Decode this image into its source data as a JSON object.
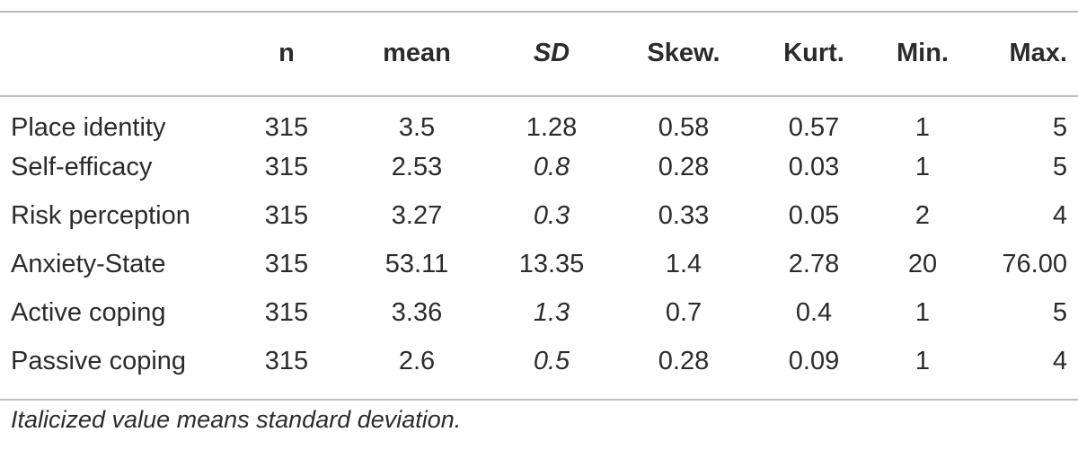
{
  "table": {
    "columns": [
      "",
      "n",
      "mean",
      "SD",
      "Skew.",
      "Kurt.",
      "Min.",
      "Max."
    ],
    "rows": [
      {
        "label": "Place identity",
        "n": "315",
        "mean": "3.5",
        "sd": "1.28",
        "sd_italic": false,
        "skew": "0.58",
        "kurt": "0.57",
        "min": "1",
        "max": "5"
      },
      {
        "label": "Self-efficacy",
        "n": "315",
        "mean": "2.53",
        "sd": "0.8",
        "sd_italic": true,
        "skew": "0.28",
        "kurt": "0.03",
        "min": "1",
        "max": "5"
      },
      {
        "label": "Risk perception",
        "n": "315",
        "mean": "3.27",
        "sd": "0.3",
        "sd_italic": true,
        "skew": "0.33",
        "kurt": "0.05",
        "min": "2",
        "max": "4"
      },
      {
        "label": "Anxiety-State",
        "n": "315",
        "mean": "53.11",
        "sd": "13.35",
        "sd_italic": false,
        "skew": "1.4",
        "kurt": "2.78",
        "min": "20",
        "max": "76.00"
      },
      {
        "label": "Active coping",
        "n": "315",
        "mean": "3.36",
        "sd": "1.3",
        "sd_italic": true,
        "skew": "0.7",
        "kurt": "0.4",
        "min": "1",
        "max": "5"
      },
      {
        "label": "Passive coping",
        "n": "315",
        "mean": "2.6",
        "sd": "0.5",
        "sd_italic": true,
        "skew": "0.28",
        "kurt": "0.09",
        "min": "1",
        "max": "4"
      }
    ]
  },
  "footnote": "Italicized value means standard deviation."
}
